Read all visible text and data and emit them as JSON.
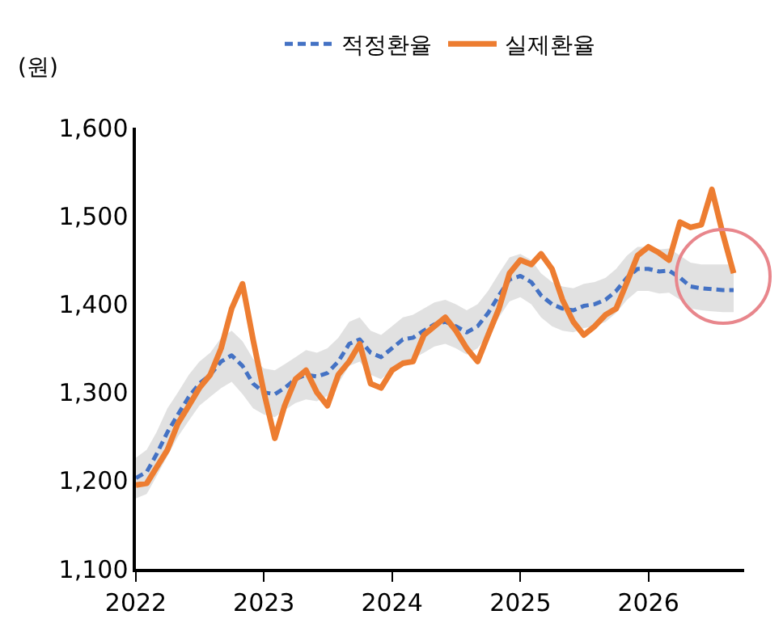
{
  "chart_data": {
    "type": "line",
    "ylabel": "(원)",
    "x": [
      "2022-01",
      "2022-02",
      "2022-03",
      "2022-04",
      "2022-05",
      "2022-06",
      "2022-07",
      "2022-08",
      "2022-09",
      "2022-10",
      "2022-11",
      "2022-12",
      "2023-01",
      "2023-02",
      "2023-03",
      "2023-04",
      "2023-05",
      "2023-06",
      "2023-07",
      "2023-08",
      "2023-09",
      "2023-10",
      "2023-11",
      "2023-12",
      "2024-01",
      "2024-02",
      "2024-03",
      "2024-04",
      "2024-05",
      "2024-06",
      "2024-07",
      "2024-08",
      "2024-09",
      "2024-10",
      "2024-11",
      "2024-12",
      "2025-01",
      "2025-02",
      "2025-03",
      "2025-04",
      "2025-05",
      "2025-06",
      "2025-07",
      "2025-08",
      "2025-09",
      "2025-10",
      "2025-11",
      "2025-12",
      "2026-01",
      "2026-02",
      "2026-03",
      "2026-04",
      "2026-05",
      "2026-06",
      "2026-07",
      "2026-08",
      "2026-09"
    ],
    "series": [
      {
        "name": "적정환율",
        "color": "#4472c4",
        "line_style": "dashed",
        "values": [
          1203,
          1210,
          1230,
          1255,
          1275,
          1295,
          1310,
          1320,
          1335,
          1342,
          1330,
          1310,
          1300,
          1298,
          1305,
          1315,
          1320,
          1318,
          1322,
          1335,
          1355,
          1360,
          1345,
          1340,
          1350,
          1360,
          1362,
          1370,
          1377,
          1380,
          1375,
          1368,
          1375,
          1390,
          1410,
          1428,
          1432,
          1425,
          1410,
          1400,
          1395,
          1393,
          1398,
          1400,
          1405,
          1415,
          1430,
          1440,
          1440,
          1437,
          1438,
          1430,
          1420,
          1418,
          1417,
          1416,
          1416
        ],
        "lower": [
          1180,
          1185,
          1205,
          1228,
          1250,
          1268,
          1285,
          1295,
          1305,
          1312,
          1298,
          1282,
          1275,
          1272,
          1280,
          1288,
          1292,
          1290,
          1296,
          1310,
          1330,
          1335,
          1320,
          1315,
          1325,
          1335,
          1338,
          1345,
          1352,
          1355,
          1350,
          1343,
          1350,
          1365,
          1385,
          1403,
          1408,
          1400,
          1385,
          1375,
          1370,
          1368,
          1373,
          1375,
          1380,
          1390,
          1405,
          1415,
          1415,
          1412,
          1413,
          1405,
          1395,
          1393,
          1392,
          1391,
          1391
        ],
        "upper": [
          1226,
          1235,
          1255,
          1282,
          1300,
          1320,
          1335,
          1345,
          1362,
          1370,
          1358,
          1338,
          1327,
          1325,
          1332,
          1340,
          1348,
          1345,
          1350,
          1362,
          1380,
          1385,
          1370,
          1365,
          1375,
          1385,
          1388,
          1395,
          1402,
          1405,
          1400,
          1393,
          1400,
          1415,
          1435,
          1453,
          1457,
          1450,
          1435,
          1425,
          1420,
          1418,
          1423,
          1425,
          1430,
          1440,
          1455,
          1465,
          1465,
          1462,
          1463,
          1455,
          1447,
          1445,
          1445,
          1445,
          1445
        ]
      },
      {
        "name": "실제환율",
        "color": "#ed7d31",
        "line_style": "solid",
        "values": [
          1195,
          1197,
          1215,
          1235,
          1265,
          1285,
          1305,
          1320,
          1350,
          1395,
          1423,
          1360,
          1300,
          1248,
          1285,
          1315,
          1325,
          1300,
          1285,
          1320,
          1335,
          1355,
          1310,
          1305,
          1325,
          1333,
          1335,
          1365,
          1375,
          1385,
          1370,
          1350,
          1335,
          1365,
          1395,
          1435,
          1450,
          1445,
          1457,
          1440,
          1405,
          1380,
          1365,
          1375,
          1388,
          1395,
          1425,
          1455,
          1465,
          1458,
          1450,
          1493,
          1487,
          1490,
          1530,
          1480,
          1435
        ]
      }
    ],
    "xlim": [
      "2022-01",
      "2026-10"
    ],
    "xticks": [
      "2022",
      "2023",
      "2024",
      "2025",
      "2026"
    ],
    "ylim": [
      1100,
      1600
    ],
    "yticks": [
      {
        "value": 1100,
        "label": "1,100"
      },
      {
        "value": 1200,
        "label": "1,200"
      },
      {
        "value": 1300,
        "label": "1,300"
      },
      {
        "value": 1400,
        "label": "1,400"
      },
      {
        "value": 1500,
        "label": "1,500"
      },
      {
        "value": 1600,
        "label": "1,600"
      }
    ],
    "grid": false,
    "legend": "top",
    "marker": "none"
  }
}
